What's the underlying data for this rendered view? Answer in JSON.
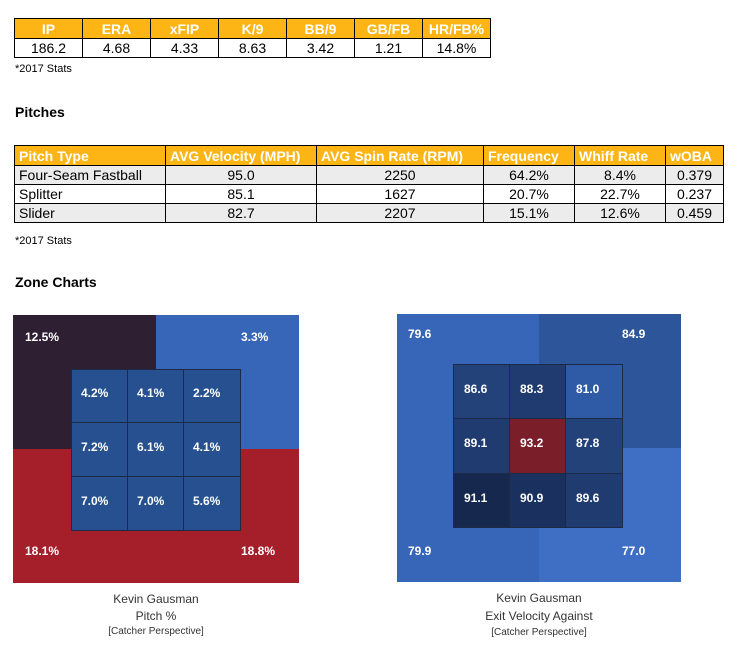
{
  "stats": {
    "headers": [
      "IP",
      "ERA",
      "xFIP",
      "K/9",
      "BB/9",
      "GB/FB",
      "HR/FB%"
    ],
    "values": [
      "186.2",
      "4.68",
      "4.33",
      "8.63",
      "3.42",
      "1.21",
      "14.8%"
    ],
    "note": "*2017 Stats"
  },
  "pitches": {
    "title": "Pitches",
    "headers": [
      "Pitch Type",
      "AVG Velocity (MPH)",
      "AVG Spin Rate (RPM)",
      "Frequency",
      "Whiff Rate",
      "wOBA"
    ],
    "rows": [
      [
        "Four-Seam Fastball",
        "95.0",
        "2250",
        "64.2%",
        "8.4%",
        "0.379"
      ],
      [
        "Splitter",
        "85.1",
        "1627",
        "20.7%",
        "22.7%",
        "0.237"
      ],
      [
        "Slider",
        "82.7",
        "2207",
        "15.1%",
        "12.6%",
        "0.459"
      ]
    ],
    "note": "*2017 Stats"
  },
  "zone_charts": {
    "title": "Zone Charts",
    "pitch_pct": {
      "corners": {
        "tl": "12.5%",
        "tr": "3.3%",
        "bl": "18.1%",
        "br": "18.8%"
      },
      "grid": [
        [
          "4.2%",
          "4.1%",
          "2.2%"
        ],
        [
          "7.2%",
          "6.1%",
          "4.1%"
        ],
        [
          "7.0%",
          "7.0%",
          "5.6%"
        ]
      ],
      "caption": {
        "name": "Kevin Gausman",
        "metric": "Pitch %",
        "perspective": "[Catcher Perspective]"
      },
      "colors": {
        "tl": "#2e1f33",
        "tr": "#3766b8",
        "bl": "#a51f2a",
        "br": "#a51f2a",
        "cell": "#26508f"
      }
    },
    "exit_velo": {
      "corners": {
        "tl": "79.6",
        "tr": "84.9",
        "bl": "79.9",
        "br": "77.0"
      },
      "grid": [
        [
          "86.6",
          "88.3",
          "81.0"
        ],
        [
          "89.1",
          "93.2",
          "87.8"
        ],
        [
          "91.1",
          "90.9",
          "89.6"
        ]
      ],
      "caption": {
        "name": "Kevin Gausman",
        "metric": "Exit Velocity Against",
        "perspective": "[Catcher Perspective]"
      },
      "colors": {
        "tl": "#3766b8",
        "tr": "#2c559a",
        "bl": "#3766b8",
        "br": "#3f6fc4",
        "grid": [
          [
            "#24427a",
            "#1f3b6f",
            "#2e5aa6"
          ],
          [
            "#1f3b6f",
            "#7a1f2a",
            "#24427a"
          ],
          [
            "#16284d",
            "#1a3160",
            "#1f3b6f"
          ]
        ]
      }
    }
  }
}
